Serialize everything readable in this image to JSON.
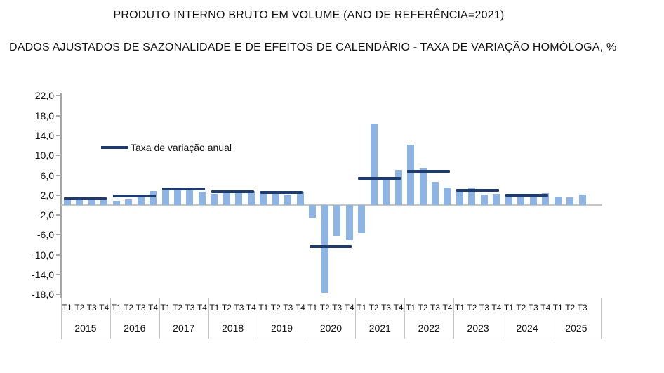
{
  "header": {
    "title": "PRODUTO INTERNO BRUTO EM VOLUME (ANO DE REFERÊNCIA=2021)",
    "subtitle": "DADOS AJUSTADOS DE SAZONALIDADE E DE EFEITOS DE CALENDÁRIO - TAXA DE VARIAÇÃO HOMÓLOGA, %"
  },
  "chart_data": {
    "type": "bar",
    "title": "PRODUTO INTERNO BRUTO EM VOLUME (ANO DE REFERÊNCIA=2021)",
    "subtitle": "DADOS AJUSTADOS DE SAZONALIDADE E DE EFEITOS DE CALENDÁRIO - TAXA DE VARIAÇÃO HOMÓLOGA, %",
    "unit": "%",
    "ylim": [
      -18,
      22
    ],
    "y_tick_step": 4,
    "y_tick_labels": [
      "22,0",
      "18,0",
      "14,0",
      "10,0",
      "6,0",
      "2,0",
      "-2,0",
      "-6,0",
      "-10,0",
      "-14,0",
      "-18,0"
    ],
    "grid": false,
    "legend": {
      "label": "Taxa de variação anual",
      "position": "inside-upper-left",
      "style": "line"
    },
    "years": [
      {
        "year": "2015",
        "quarters": [
          "T1",
          "T2",
          "T3",
          "T4"
        ],
        "values": [
          1.5,
          1.4,
          1.4,
          1.4
        ],
        "annual": 1.3
      },
      {
        "year": "2016",
        "quarters": [
          "T1",
          "T2",
          "T3",
          "T4"
        ],
        "values": [
          0.9,
          1.2,
          2.0,
          2.8
        ],
        "annual": 1.8
      },
      {
        "year": "2017",
        "quarters": [
          "T1",
          "T2",
          "T3",
          "T4"
        ],
        "values": [
          3.5,
          3.5,
          3.5,
          2.7
        ],
        "annual": 3.3
      },
      {
        "year": "2018",
        "quarters": [
          "T1",
          "T2",
          "T3",
          "T4"
        ],
        "values": [
          2.3,
          2.8,
          2.9,
          2.8
        ],
        "annual": 2.7
      },
      {
        "year": "2019",
        "quarters": [
          "T1",
          "T2",
          "T3",
          "T4"
        ],
        "values": [
          2.6,
          2.7,
          2.1,
          2.7
        ],
        "annual": 2.6
      },
      {
        "year": "2020",
        "quarters": [
          "T1",
          "T2",
          "T3",
          "T4"
        ],
        "values": [
          -2.5,
          -17.7,
          -6.2,
          -7.0
        ],
        "annual": -8.3
      },
      {
        "year": "2021",
        "quarters": [
          "T1",
          "T2",
          "T3",
          "T4"
        ],
        "values": [
          -5.7,
          16.4,
          5.5,
          7.1
        ],
        "annual": 5.4
      },
      {
        "year": "2022",
        "quarters": [
          "T1",
          "T2",
          "T3",
          "T4"
        ],
        "values": [
          12.2,
          7.5,
          4.7,
          3.5
        ],
        "annual": 6.8
      },
      {
        "year": "2023",
        "quarters": [
          "T1",
          "T2",
          "T3",
          "T4"
        ],
        "values": [
          3.3,
          3.5,
          2.1,
          2.3
        ],
        "annual": 2.9
      },
      {
        "year": "2024",
        "quarters": [
          "T1",
          "T2",
          "T3",
          "T4"
        ],
        "values": [
          1.8,
          1.9,
          1.9,
          2.4
        ],
        "annual": 2.0
      },
      {
        "year": "2025",
        "quarters": [
          "T1",
          "T2",
          "T3"
        ],
        "values": [
          1.7,
          1.6,
          2.1
        ],
        "annual": null
      }
    ],
    "colors": {
      "bar": "#8EB4E3",
      "annual_line": "#1F3B6E",
      "axis": "#A6A6A6",
      "zero_line": "#C6C6C6",
      "divider": "#C6C6C6",
      "text": "#000000"
    }
  }
}
